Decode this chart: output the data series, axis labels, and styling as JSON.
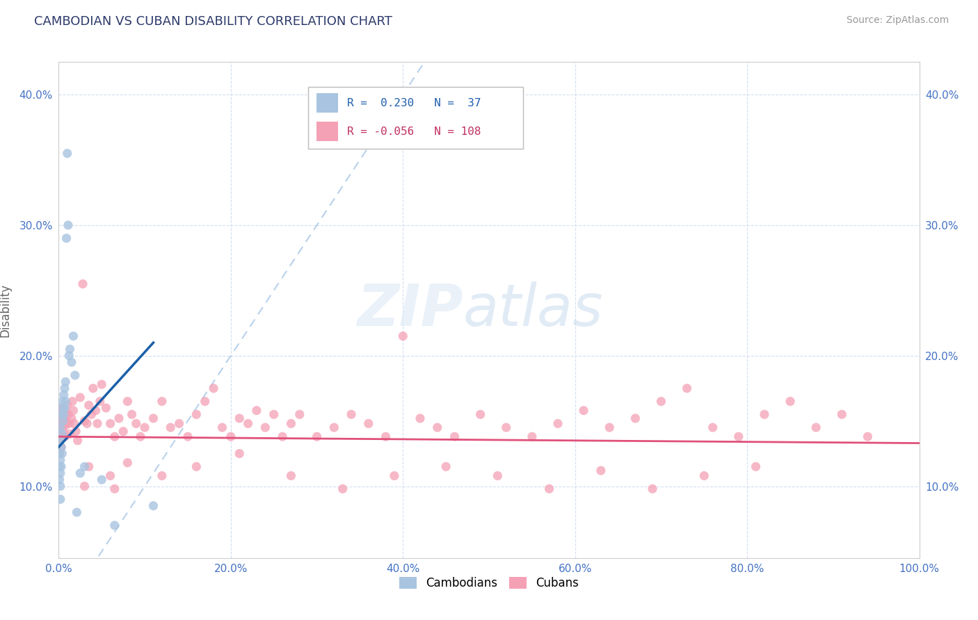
{
  "title": "CAMBODIAN VS CUBAN DISABILITY CORRELATION CHART",
  "source": "Source: ZipAtlas.com",
  "ylabel": "Disability",
  "xlim": [
    0.0,
    1.0
  ],
  "ylim": [
    0.045,
    0.425
  ],
  "xticks": [
    0.0,
    0.2,
    0.4,
    0.6,
    0.8,
    1.0
  ],
  "xtick_labels": [
    "0.0%",
    "20.0%",
    "40.0%",
    "60.0%",
    "80.0%",
    "100.0%"
  ],
  "yticks": [
    0.1,
    0.2,
    0.3,
    0.4
  ],
  "ytick_labels": [
    "10.0%",
    "20.0%",
    "30.0%",
    "40.0%"
  ],
  "r_cambodian": 0.23,
  "n_cambodian": 37,
  "r_cuban": -0.056,
  "n_cuban": 108,
  "cambodian_color": "#a8c4e0",
  "cuban_color": "#f4a0b5",
  "cambodian_line_color": "#1a5fa8",
  "cuban_line_color": "#e0507a",
  "diagonal_color": "#b0cce8",
  "watermark_zip": "ZIP",
  "watermark_atlas": "atlas",
  "cambodian_x": [
    0.001,
    0.001,
    0.001,
    0.001,
    0.002,
    0.002,
    0.002,
    0.002,
    0.002,
    0.003,
    0.003,
    0.003,
    0.004,
    0.004,
    0.004,
    0.005,
    0.005,
    0.006,
    0.006,
    0.007,
    0.007,
    0.008,
    0.008,
    0.009,
    0.01,
    0.011,
    0.012,
    0.013,
    0.015,
    0.017,
    0.019,
    0.021,
    0.025,
    0.03,
    0.05,
    0.065,
    0.11
  ],
  "cambodian_y": [
    0.125,
    0.135,
    0.115,
    0.105,
    0.145,
    0.12,
    0.11,
    0.1,
    0.09,
    0.155,
    0.13,
    0.115,
    0.165,
    0.14,
    0.125,
    0.16,
    0.15,
    0.17,
    0.155,
    0.175,
    0.16,
    0.18,
    0.165,
    0.29,
    0.355,
    0.3,
    0.2,
    0.205,
    0.195,
    0.215,
    0.185,
    0.08,
    0.11,
    0.115,
    0.105,
    0.07,
    0.085
  ],
  "cuban_x": [
    0.001,
    0.001,
    0.001,
    0.002,
    0.002,
    0.003,
    0.003,
    0.004,
    0.004,
    0.005,
    0.005,
    0.006,
    0.007,
    0.007,
    0.008,
    0.009,
    0.01,
    0.011,
    0.012,
    0.013,
    0.015,
    0.016,
    0.017,
    0.018,
    0.02,
    0.022,
    0.025,
    0.028,
    0.03,
    0.033,
    0.035,
    0.038,
    0.04,
    0.043,
    0.045,
    0.048,
    0.05,
    0.055,
    0.06,
    0.065,
    0.07,
    0.075,
    0.08,
    0.085,
    0.09,
    0.095,
    0.1,
    0.11,
    0.12,
    0.13,
    0.14,
    0.15,
    0.16,
    0.17,
    0.18,
    0.19,
    0.2,
    0.21,
    0.22,
    0.23,
    0.24,
    0.25,
    0.26,
    0.27,
    0.28,
    0.3,
    0.32,
    0.34,
    0.36,
    0.38,
    0.4,
    0.42,
    0.44,
    0.46,
    0.49,
    0.52,
    0.55,
    0.58,
    0.61,
    0.64,
    0.67,
    0.7,
    0.73,
    0.76,
    0.79,
    0.82,
    0.85,
    0.88,
    0.91,
    0.94,
    0.03,
    0.035,
    0.06,
    0.065,
    0.08,
    0.12,
    0.16,
    0.21,
    0.27,
    0.33,
    0.39,
    0.45,
    0.51,
    0.57,
    0.63,
    0.69,
    0.75,
    0.81
  ],
  "cuban_y": [
    0.145,
    0.135,
    0.125,
    0.15,
    0.14,
    0.155,
    0.13,
    0.16,
    0.148,
    0.142,
    0.138,
    0.152,
    0.146,
    0.138,
    0.156,
    0.148,
    0.162,
    0.155,
    0.148,
    0.14,
    0.152,
    0.165,
    0.158,
    0.148,
    0.142,
    0.135,
    0.168,
    0.255,
    0.15,
    0.148,
    0.162,
    0.155,
    0.175,
    0.158,
    0.148,
    0.165,
    0.178,
    0.16,
    0.148,
    0.138,
    0.152,
    0.142,
    0.165,
    0.155,
    0.148,
    0.138,
    0.145,
    0.152,
    0.165,
    0.145,
    0.148,
    0.138,
    0.155,
    0.165,
    0.175,
    0.145,
    0.138,
    0.152,
    0.148,
    0.158,
    0.145,
    0.155,
    0.138,
    0.148,
    0.155,
    0.138,
    0.145,
    0.155,
    0.148,
    0.138,
    0.215,
    0.152,
    0.145,
    0.138,
    0.155,
    0.145,
    0.138,
    0.148,
    0.158,
    0.145,
    0.152,
    0.165,
    0.175,
    0.145,
    0.138,
    0.155,
    0.165,
    0.145,
    0.155,
    0.138,
    0.1,
    0.115,
    0.108,
    0.098,
    0.118,
    0.108,
    0.115,
    0.125,
    0.108,
    0.098,
    0.108,
    0.115,
    0.108,
    0.098,
    0.112,
    0.098,
    0.108,
    0.115
  ]
}
